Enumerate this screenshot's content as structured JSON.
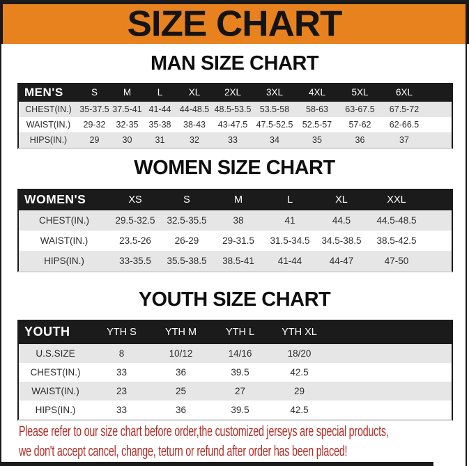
{
  "banner": {
    "title": "SIZE CHART"
  },
  "tables": {
    "men": {
      "heading": "MAN SIZE CHART",
      "header": [
        "MEN'S",
        "S",
        "M",
        "L",
        "XL",
        "2XL",
        "3XL",
        "4XL",
        "5XL",
        "6XL"
      ],
      "rows": [
        [
          "CHEST(IN.)",
          "35-37.5",
          "37.5-41",
          "41-44",
          "44-48.5",
          "48.5-53.5",
          "53.5-58",
          "58-63",
          "63-67.5",
          "67.5-72"
        ],
        [
          "WAIST(IN.)",
          "29-32",
          "32-35",
          "35-38",
          "38-43",
          "43-47.5",
          "47.5-52.5",
          "52.5-57",
          "57-62",
          "62-66.5"
        ],
        [
          "HIPS(IN.)",
          "29",
          "30",
          "31",
          "32",
          "33",
          "34",
          "35",
          "36",
          "37"
        ]
      ]
    },
    "women": {
      "heading": "WOMEN SIZE CHART",
      "header": [
        "WOMEN'S",
        "XS",
        "S",
        "M",
        "L",
        "XL",
        "XXL"
      ],
      "rows": [
        [
          "CHEST(IN.)",
          "29.5-32.5",
          "32.5-35.5",
          "38",
          "41",
          "44.5",
          "44.5-48.5"
        ],
        [
          "WAIST(IN.)",
          "23.5-26",
          "26-29",
          "29-31.5",
          "31.5-34.5",
          "34.5-38.5",
          "38.5-42.5"
        ],
        [
          "HIPS(IN.)",
          "33-35.5",
          "35.5-38.5",
          "38.5-41",
          "41-44",
          "44-47",
          "47-50"
        ]
      ]
    },
    "youth": {
      "heading": "YOUTH SIZE CHART",
      "header": [
        "YOUTH",
        "YTH S",
        "YTH M",
        "YTH L",
        "YTH XL"
      ],
      "rows": [
        [
          "U.S.SIZE",
          "8",
          "10/12",
          "14/16",
          "18/20"
        ],
        [
          "CHEST(IN.)",
          "33",
          "36",
          "39.5",
          "42.5"
        ],
        [
          "WAIST(IN.)",
          "23",
          "25",
          "27",
          "29"
        ],
        [
          "HIPS(IN.)",
          "33",
          "36",
          "39.5",
          "42.5"
        ]
      ]
    }
  },
  "disclaimer": {
    "line1": "Please refer to our size chart before order,the customized jerseys are special products,",
    "line2": "we don't accept cancel, change, teturn or refund after order has been placed!"
  },
  "colors": {
    "banner_orange": "#E8821E",
    "header_black": "#1B1B1B",
    "row_gray": "#E6E6E6",
    "disclaimer_red": "#B12A23"
  }
}
